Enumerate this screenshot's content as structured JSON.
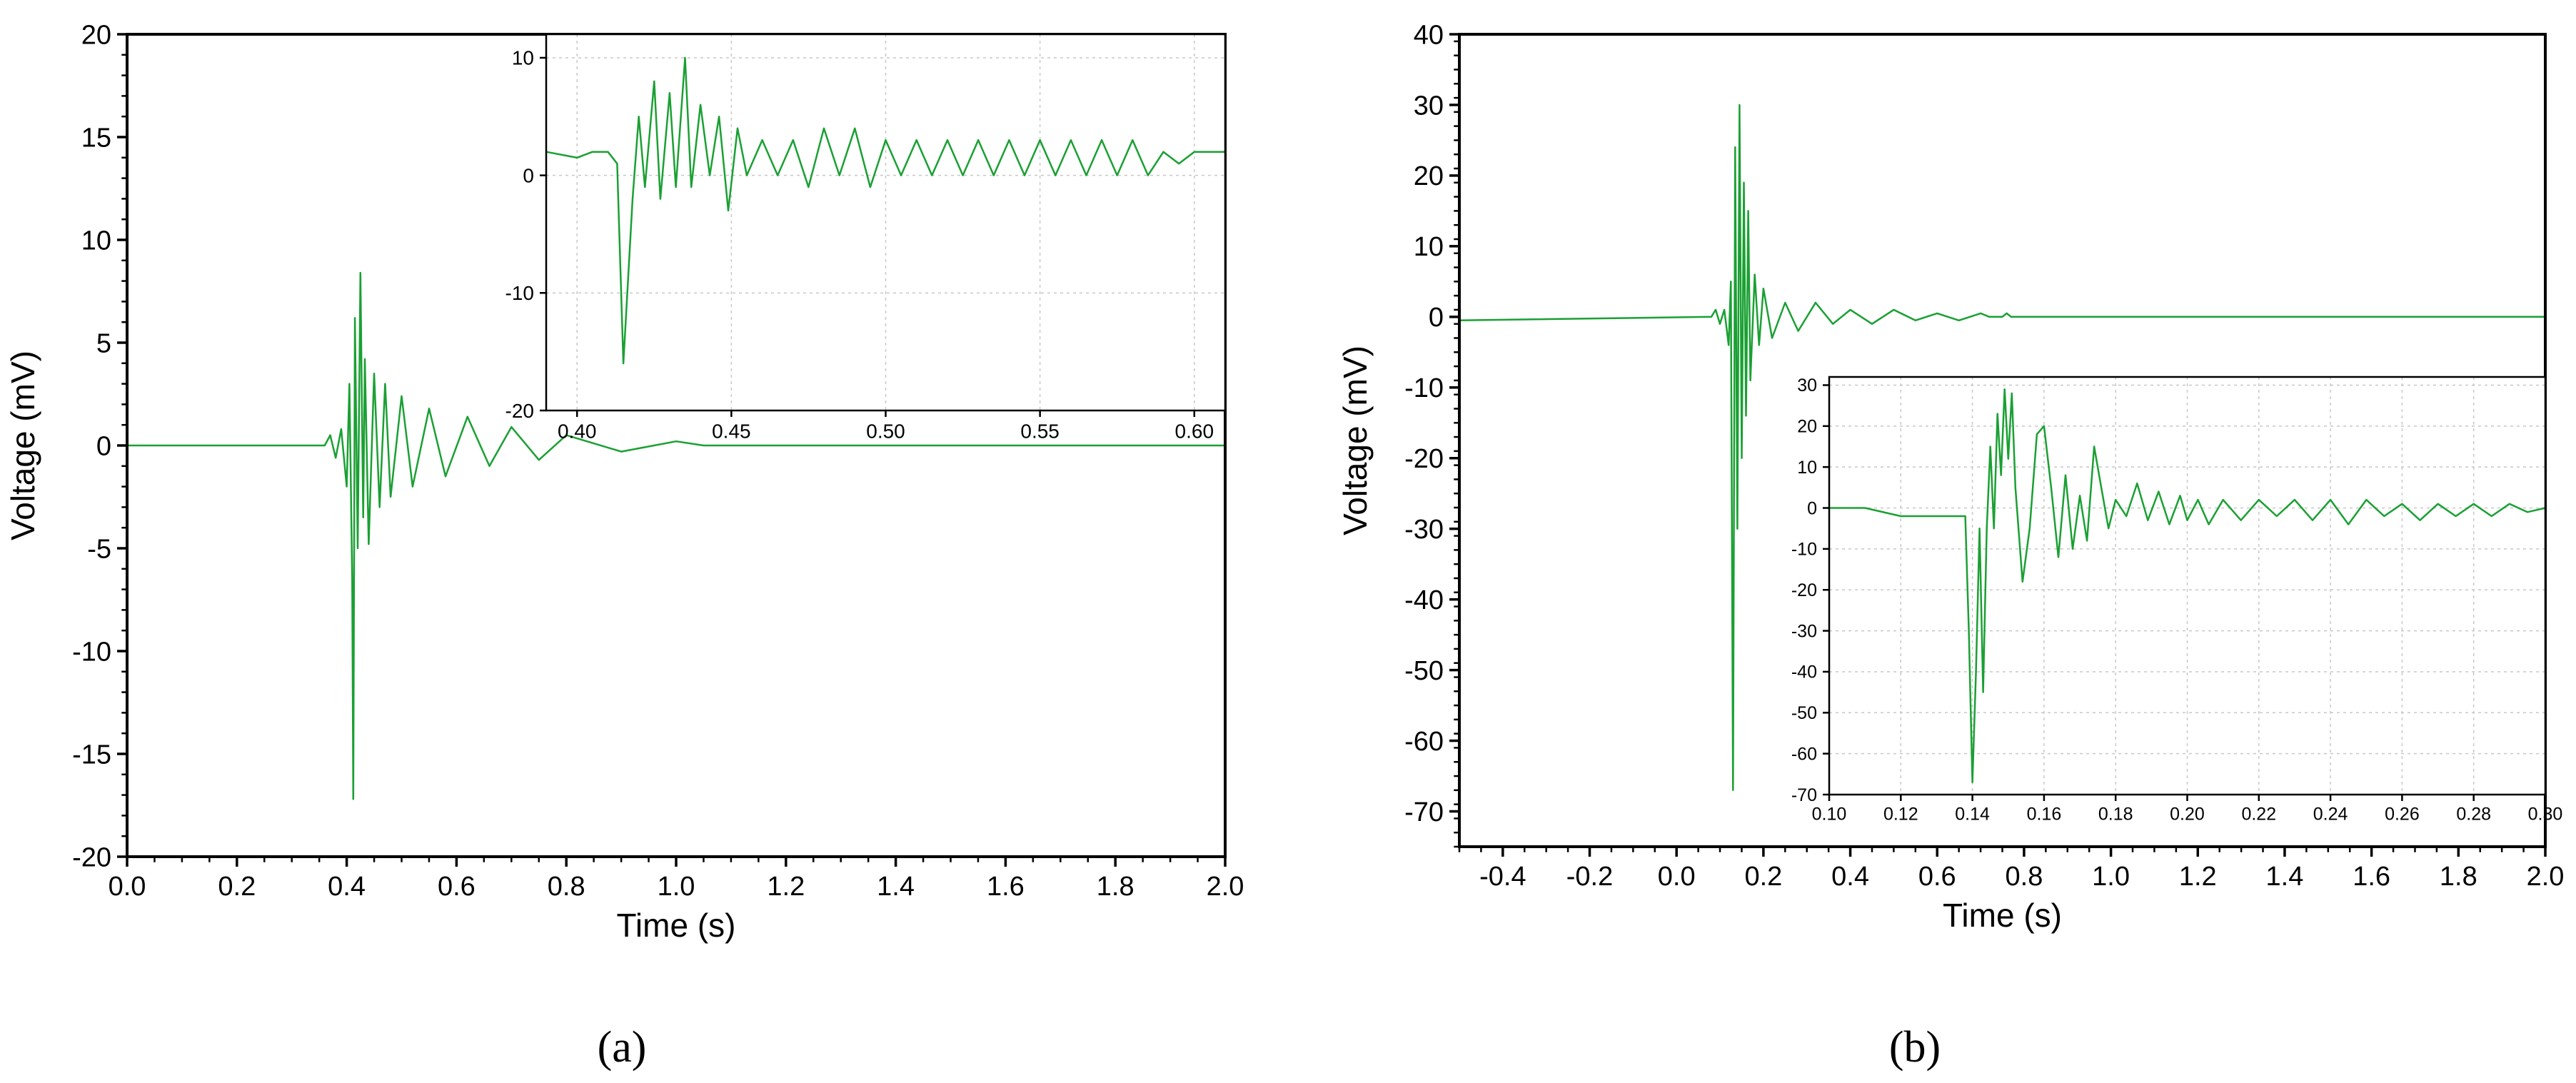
{
  "figure": {
    "captions": [
      "(a)",
      "(b)"
    ]
  },
  "colors": {
    "trace": "#1aa033",
    "grid": "#c8c8c8",
    "axis": "#000000"
  },
  "chart_data": [
    {
      "id": "a-main",
      "type": "line",
      "xlabel": "Time (s)",
      "ylabel": "Voltage (mV)",
      "xlim": [
        0,
        2.0
      ],
      "ylim": [
        -20,
        20
      ],
      "xticks": [
        "0.0",
        "0.2",
        "0.4",
        "0.6",
        "0.8",
        "1.0",
        "1.2",
        "1.4",
        "1.6",
        "1.8",
        "2.0"
      ],
      "yticks": [
        "-20",
        "-15",
        "-10",
        "-5",
        "0",
        "5",
        "10",
        "15",
        "20"
      ],
      "grid": false,
      "series": [
        {
          "x": [
            0,
            0.36,
            0.37,
            0.38,
            0.39,
            0.4,
            0.405,
            0.41,
            0.412,
            0.415,
            0.42,
            0.425,
            0.43,
            0.433,
            0.44,
            0.45,
            0.46,
            0.47,
            0.48,
            0.5,
            0.52,
            0.55,
            0.58,
            0.62,
            0.66,
            0.7,
            0.75,
            0.8,
            0.9,
            1.0,
            1.05,
            1.07,
            2.0
          ],
          "y": [
            0,
            0,
            0.5,
            -0.6,
            0.8,
            -2.0,
            3.0,
            -6.5,
            -17.2,
            6.2,
            -5.0,
            8.4,
            -3.5,
            4.2,
            -4.8,
            3.5,
            -3.0,
            3.0,
            -2.5,
            2.4,
            -2.0,
            1.8,
            -1.5,
            1.4,
            -1.0,
            0.9,
            -0.7,
            0.5,
            -0.3,
            0.2,
            0,
            0,
            0
          ]
        }
      ]
    },
    {
      "id": "a-inset",
      "type": "line",
      "xlim": [
        0.39,
        0.61
      ],
      "ylim": [
        -20,
        12
      ],
      "xticks": [
        "0.40",
        "0.45",
        "0.50",
        "0.55",
        "0.60"
      ],
      "yticks": [
        "-20",
        "-10",
        "0",
        "10"
      ],
      "grid": true,
      "series": [
        {
          "x": [
            0.39,
            0.4,
            0.405,
            0.41,
            0.413,
            0.415,
            0.418,
            0.42,
            0.422,
            0.425,
            0.427,
            0.43,
            0.432,
            0.435,
            0.437,
            0.44,
            0.443,
            0.446,
            0.449,
            0.452,
            0.455,
            0.46,
            0.465,
            0.47,
            0.475,
            0.48,
            0.485,
            0.49,
            0.495,
            0.5,
            0.505,
            0.51,
            0.515,
            0.52,
            0.525,
            0.53,
            0.535,
            0.54,
            0.545,
            0.55,
            0.555,
            0.56,
            0.565,
            0.57,
            0.575,
            0.58,
            0.585,
            0.59,
            0.595,
            0.6,
            0.61
          ],
          "y": [
            2,
            1.5,
            2,
            2,
            1,
            -16,
            -2,
            5,
            -1,
            8,
            -2,
            7,
            -1,
            10,
            -1,
            6,
            0,
            5,
            -3,
            4,
            0,
            3,
            0,
            3,
            -1,
            4,
            0,
            4,
            -1,
            3,
            0,
            3,
            0,
            3,
            0,
            3,
            0,
            3,
            0,
            3,
            0,
            3,
            0,
            3,
            0,
            3,
            0,
            2,
            1,
            2,
            2
          ]
        }
      ]
    },
    {
      "id": "b-main",
      "type": "line",
      "xlabel": "Time (s)",
      "ylabel": "Voltage (mV)",
      "xlim": [
        -0.5,
        2.0
      ],
      "ylim": [
        -75,
        40
      ],
      "xticks": [
        "-0.4",
        "-0.2",
        "0.0",
        "0.2",
        "0.4",
        "0.6",
        "0.8",
        "1.0",
        "1.2",
        "1.4",
        "1.6",
        "1.8",
        "2.0"
      ],
      "yticks": [
        "-70",
        "-60",
        "-50",
        "-40",
        "-30",
        "-20",
        "-10",
        "0",
        "10",
        "20",
        "30",
        "40"
      ],
      "grid": false,
      "series": [
        {
          "x": [
            -0.5,
            0.08,
            0.09,
            0.1,
            0.11,
            0.12,
            0.125,
            0.13,
            0.135,
            0.14,
            0.145,
            0.15,
            0.155,
            0.16,
            0.165,
            0.17,
            0.18,
            0.19,
            0.2,
            0.22,
            0.25,
            0.28,
            0.32,
            0.36,
            0.4,
            0.45,
            0.5,
            0.55,
            0.6,
            0.65,
            0.7,
            0.72,
            0.75,
            0.76,
            0.77,
            0.78,
            2.0
          ],
          "y": [
            -0.5,
            0,
            1,
            -1,
            1,
            -4,
            5,
            -67,
            24,
            -30,
            30,
            -20,
            19,
            -14,
            15,
            -9,
            6,
            -4,
            4,
            -3,
            2,
            -2,
            2,
            -1,
            1,
            -1,
            1,
            -0.5,
            0.5,
            -0.5,
            0.5,
            0,
            0,
            0.5,
            0,
            0,
            0
          ]
        }
      ]
    },
    {
      "id": "b-inset",
      "type": "line",
      "xlim": [
        0.1,
        0.3
      ],
      "ylim": [
        -70,
        32
      ],
      "xticks": [
        "0.10",
        "0.12",
        "0.14",
        "0.16",
        "0.18",
        "0.20",
        "0.22",
        "0.24",
        "0.26",
        "0.28",
        "0.30"
      ],
      "yticks": [
        "-70",
        "-60",
        "-50",
        "-40",
        "-30",
        "-20",
        "-10",
        "0",
        "10",
        "20",
        "30"
      ],
      "grid": true,
      "series": [
        {
          "x": [
            0.1,
            0.11,
            0.12,
            0.125,
            0.13,
            0.135,
            0.138,
            0.139,
            0.14,
            0.141,
            0.142,
            0.143,
            0.144,
            0.145,
            0.146,
            0.147,
            0.148,
            0.149,
            0.15,
            0.151,
            0.152,
            0.154,
            0.156,
            0.158,
            0.16,
            0.162,
            0.164,
            0.166,
            0.168,
            0.17,
            0.172,
            0.174,
            0.176,
            0.178,
            0.18,
            0.183,
            0.186,
            0.189,
            0.192,
            0.195,
            0.198,
            0.2,
            0.203,
            0.206,
            0.21,
            0.215,
            0.22,
            0.225,
            0.23,
            0.235,
            0.24,
            0.245,
            0.25,
            0.255,
            0.26,
            0.265,
            0.27,
            0.275,
            0.28,
            0.285,
            0.29,
            0.295,
            0.3
          ],
          "y": [
            0,
            0,
            -2,
            -2,
            -2,
            -2,
            -2,
            -30,
            -67,
            -40,
            -5,
            -45,
            -5,
            15,
            -5,
            23,
            8,
            29,
            12,
            28,
            5,
            -18,
            -5,
            18,
            20,
            5,
            -12,
            8,
            -10,
            3,
            -8,
            15,
            5,
            -5,
            2,
            -2,
            6,
            -3,
            4,
            -4,
            3,
            -3,
            2,
            -4,
            2,
            -3,
            2,
            -2,
            2,
            -3,
            2,
            -4,
            2,
            -2,
            1,
            -3,
            1,
            -2,
            1,
            -2,
            1,
            -1,
            0
          ]
        }
      ]
    }
  ]
}
